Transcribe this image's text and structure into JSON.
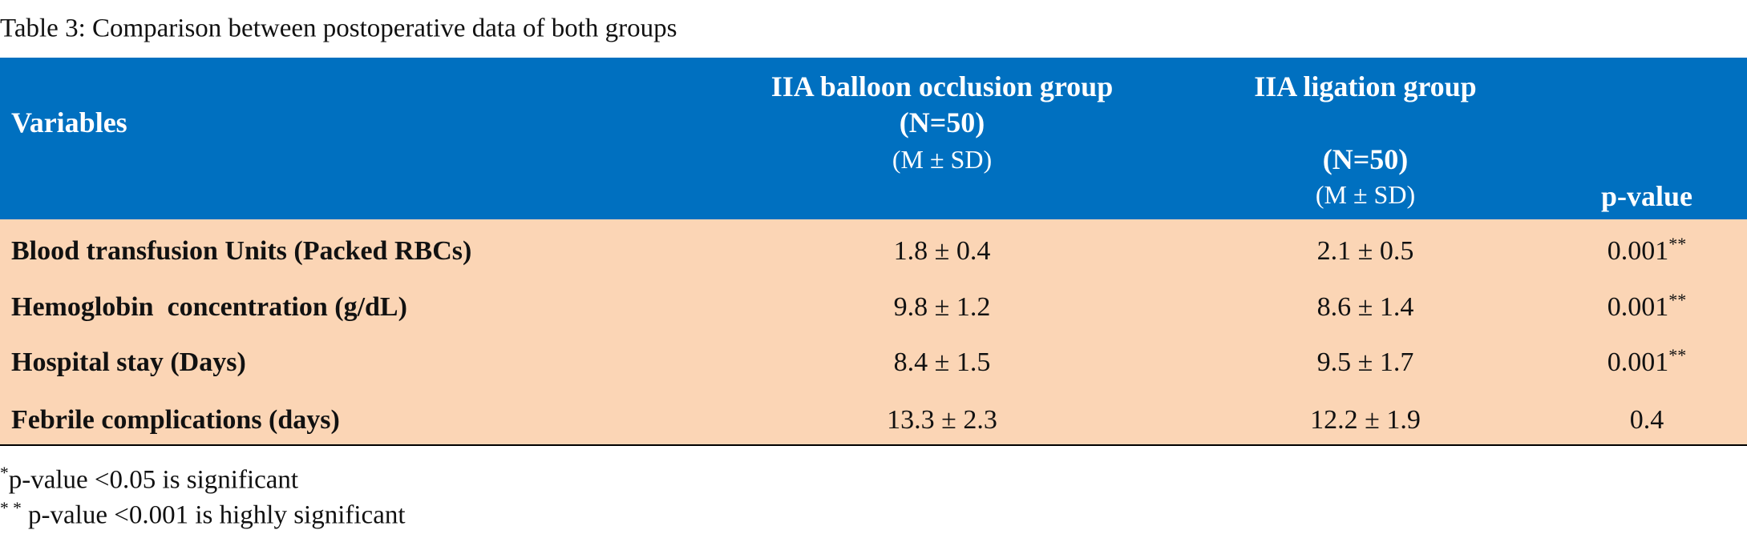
{
  "title": "Table 3: Comparison between postoperative data of both groups",
  "table": {
    "headers": [
      [
        "Variables"
      ],
      [
        "IIA balloon occlusion group",
        "(N=50)",
        "(M ± SD)"
      ],
      [
        "IIA ligation group",
        "(N=50)",
        "(M ± SD)"
      ],
      [
        "p-value"
      ]
    ],
    "rows": [
      [
        "Blood transfusion Units (Packed RBCs)",
        "1.8 ± 0.4",
        "2.1 ± 0.5",
        {
          "text": "0.001",
          "sup": "**"
        }
      ],
      [
        "Hemoglobin  concentration (g/dL)",
        "9.8 ± 1.2",
        "8.6 ± 1.4",
        {
          "text": "0.001",
          "sup": "**"
        }
      ],
      [
        "Hospital stay (Days)",
        "8.4 ± 1.5",
        "9.5 ± 1.7",
        {
          "text": "0.001",
          "sup": "**"
        }
      ],
      [
        "Febrile complications (days)",
        "13.3 ± 2.3",
        "12.2 ± 1.9",
        {
          "text": "0.4"
        }
      ]
    ]
  },
  "footnotes": [
    {
      "sup": "*",
      "text": "p-value <0.05 is significant"
    },
    {
      "sup": "* *",
      "text": " p-value <0.001 is highly significant"
    }
  ]
}
